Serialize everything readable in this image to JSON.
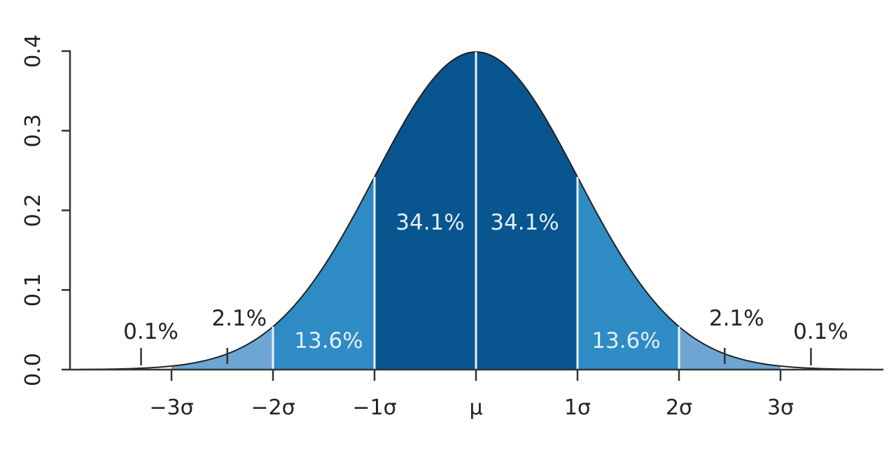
{
  "chart_data": {
    "type": "area",
    "title": "",
    "xlabel": "",
    "ylabel": "",
    "distribution": "standard normal density",
    "xlim": [
      -3.9,
      3.9
    ],
    "ylim": [
      0,
      0.4
    ],
    "grid": false,
    "y_ticks": [
      0.0,
      0.1,
      0.2,
      0.3,
      0.4
    ],
    "y_tick_labels": [
      "0.0",
      "0.1",
      "0.2",
      "0.3",
      "0.4"
    ],
    "x_ticks": [
      -3,
      -2,
      -1,
      0,
      1,
      2,
      3
    ],
    "x_tick_labels": [
      "−3σ",
      "−2σ",
      "−1σ",
      "μ",
      "1σ",
      "2σ",
      "3σ"
    ],
    "regions": [
      {
        "from": -3,
        "to": -2,
        "label": "2.1%",
        "color": "#6ea6d3",
        "label_outside": true,
        "pointer_x": -2.45
      },
      {
        "from": -2,
        "to": -1,
        "label": "13.6%",
        "color": "#2f8bc4"
      },
      {
        "from": -1,
        "to": 0,
        "label": "34.1%",
        "color": "#08558f"
      },
      {
        "from": 0,
        "to": 1,
        "label": "34.1%",
        "color": "#08558f"
      },
      {
        "from": 1,
        "to": 2,
        "label": "13.6%",
        "color": "#2f8bc4"
      },
      {
        "from": 2,
        "to": 3,
        "label": "2.1%",
        "color": "#6ea6d3",
        "label_outside": true,
        "pointer_x": 2.45
      }
    ],
    "tail_labels": [
      {
        "x": -3.3,
        "label": "0.1%"
      },
      {
        "x": 3.3,
        "label": "0.1%"
      }
    ],
    "colors": {
      "axis": "#333333",
      "curve": "#222222",
      "divider": "#e8f2fb",
      "inner_label": "#e2effa",
      "outer_label": "#222222"
    }
  }
}
